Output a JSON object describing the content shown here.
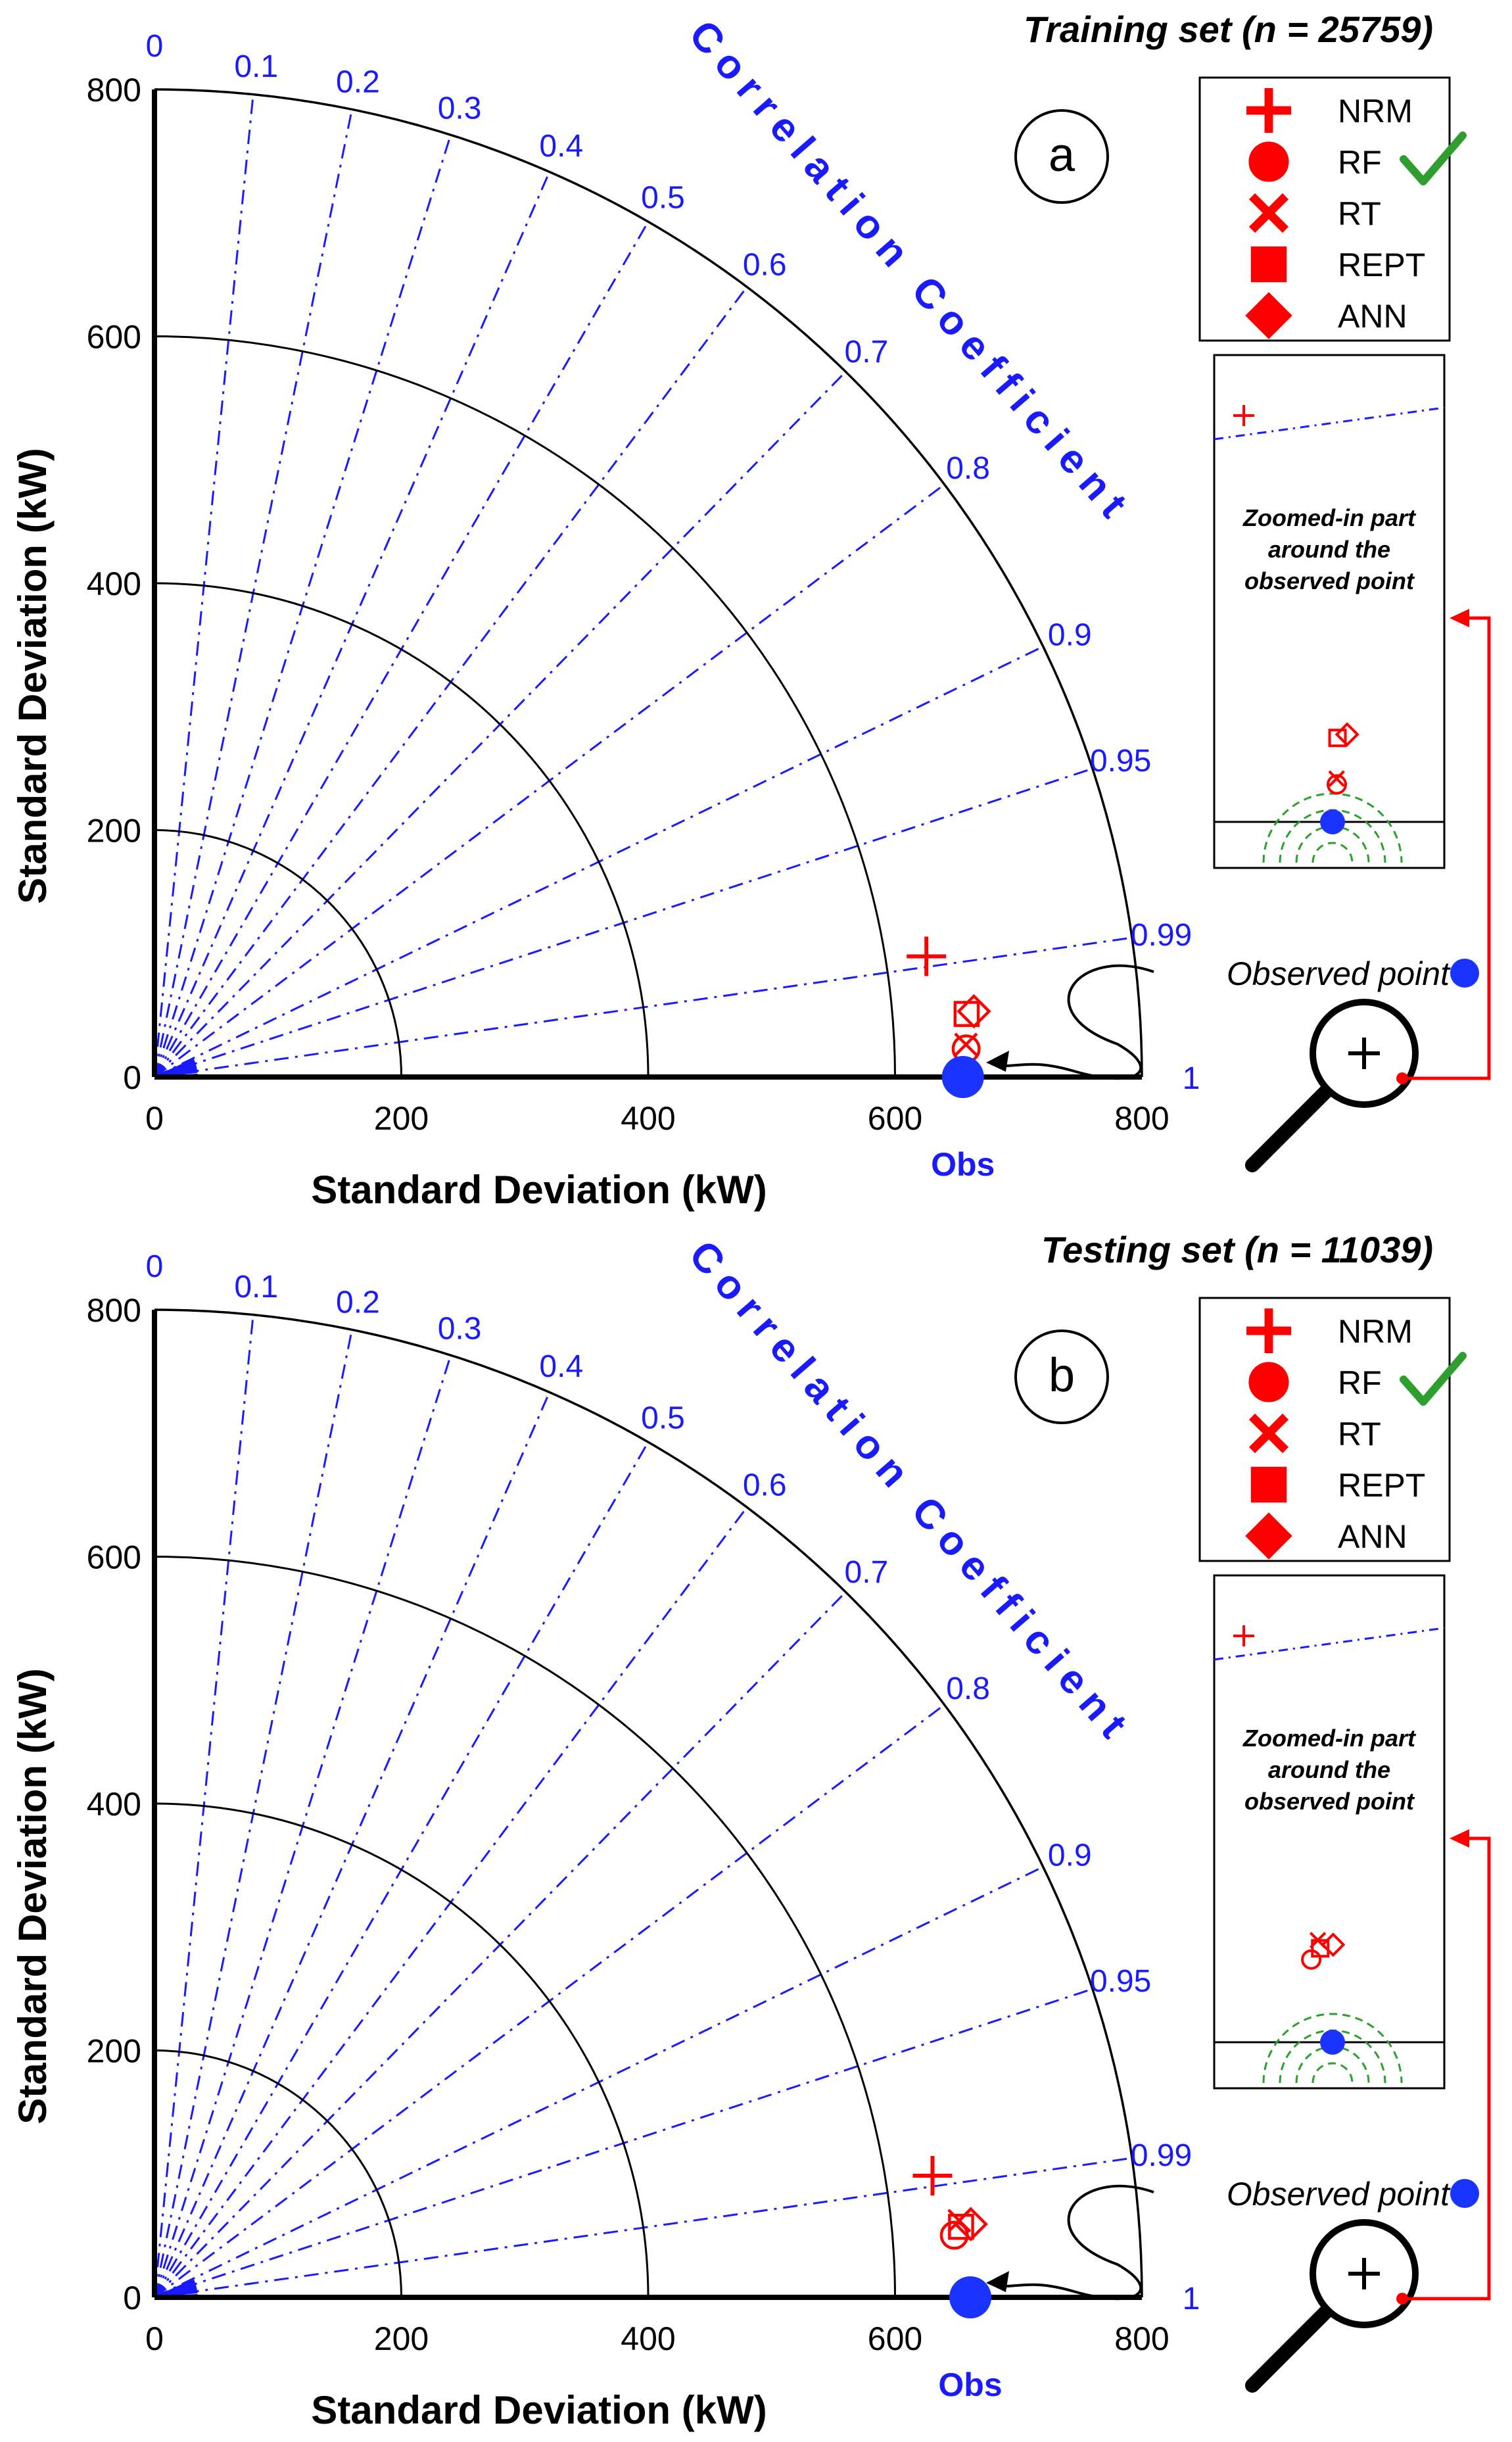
{
  "chart_data": [
    {
      "type": "taylor",
      "panel": "a",
      "title": "Training set (n = 25759)",
      "xlabel": "Standard Deviation (kW)",
      "ylabel": "Standard Deviation (kW)",
      "arc_label": "Correlation Coefficient",
      "obs_label": "Obs",
      "std_range": [
        0,
        800
      ],
      "std_ticks": [
        "0",
        "200",
        "400",
        "600",
        "800"
      ],
      "std_arcs": [
        200,
        400,
        600,
        800
      ],
      "correlation_ticks": [
        "0",
        "0.1",
        "0.2",
        "0.3",
        "0.4",
        "0.5",
        "0.6",
        "0.7",
        "0.8",
        "0.9",
        "0.95",
        "0.99",
        "1"
      ],
      "observed": {
        "std": 655,
        "corr": 1.0
      },
      "models": [
        {
          "name": "NRM",
          "marker": "plus",
          "std": 633,
          "corr": 0.988
        },
        {
          "name": "RF",
          "marker": "circle",
          "std": 658,
          "corr": 0.9994
        },
        {
          "name": "RT",
          "marker": "x",
          "std": 658,
          "corr": 0.9992
        },
        {
          "name": "REPT",
          "marker": "square",
          "std": 660,
          "corr": 0.997
        },
        {
          "name": "ANN",
          "marker": "diamond",
          "std": 666,
          "corr": 0.9968
        }
      ],
      "best_model": "RF",
      "zoom_note": "Zoomed-in part around the observed point",
      "observed_point_label": "Observed point"
    },
    {
      "type": "taylor",
      "panel": "b",
      "title": "Testing set (n = 11039)",
      "xlabel": "Standard Deviation (kW)",
      "ylabel": "Standard Deviation (kW)",
      "arc_label": "Correlation Coefficient",
      "obs_label": "Obs",
      "std_range": [
        0,
        800
      ],
      "std_ticks": [
        "0",
        "200",
        "400",
        "600",
        "800"
      ],
      "std_arcs": [
        200,
        400,
        600,
        800
      ],
      "correlation_ticks": [
        "0",
        "0.1",
        "0.2",
        "0.3",
        "0.4",
        "0.5",
        "0.6",
        "0.7",
        "0.8",
        "0.9",
        "0.95",
        "0.99",
        "1"
      ],
      "observed": {
        "std": 661,
        "corr": 1.0
      },
      "models": [
        {
          "name": "NRM",
          "marker": "plus",
          "std": 638,
          "corr": 0.988
        },
        {
          "name": "RF",
          "marker": "circle",
          "std": 650,
          "corr": 0.997
        },
        {
          "name": "RT",
          "marker": "x",
          "std": 655,
          "corr": 0.9955
        },
        {
          "name": "REPT",
          "marker": "square",
          "std": 656,
          "corr": 0.9962
        },
        {
          "name": "ANN",
          "marker": "diamond",
          "std": 664,
          "corr": 0.996
        }
      ],
      "best_model": "RF",
      "zoom_note": "Zoomed-in part around the observed point",
      "observed_point_label": "Observed point"
    }
  ],
  "colors": {
    "model": "#ff0000",
    "observed": "#1a33ff",
    "correlation": "#1a1aff",
    "check": "#2e9e2e",
    "zoom_rings": "#2ca02c"
  }
}
